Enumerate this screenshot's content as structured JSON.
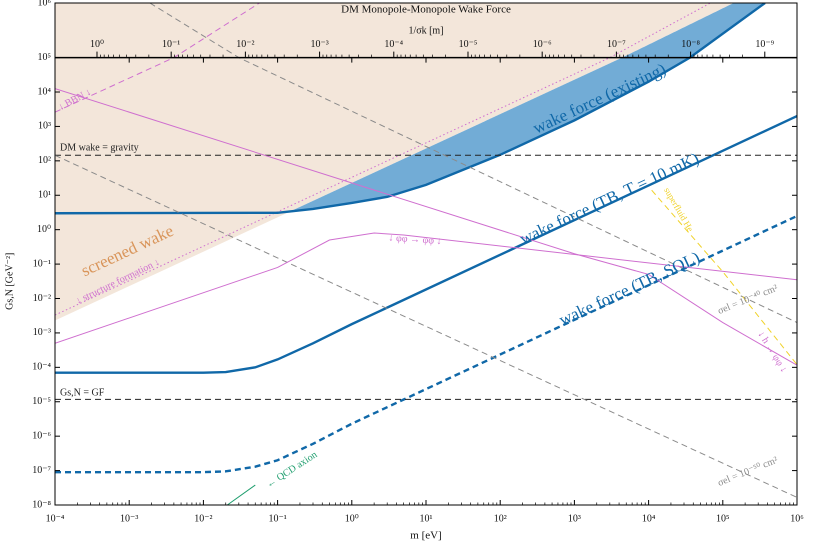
{
  "chart_data": {
    "type": "line",
    "title": "DM Monopole-Monopole Wake Force",
    "x_label": "m [eV]",
    "y_label": "Gs,N [GeV⁻²]",
    "x2_label": "1/σk [m]",
    "xscale": "log",
    "yscale": "log",
    "xlim": [
      0.0001,
      1000000.0
    ],
    "ylim": [
      1e-08,
      1000000.0
    ],
    "top_panel_ylim": [
      100000.0,
      1000000.0
    ],
    "x2lim": [
      3.68,
      3.68e-10
    ],
    "xticks": [
      {
        "value": 0.0001,
        "label": "10⁻⁴"
      },
      {
        "value": 0.001,
        "label": "10⁻³"
      },
      {
        "value": 0.01,
        "label": "10⁻²"
      },
      {
        "value": 0.1,
        "label": "10⁻¹"
      },
      {
        "value": 1,
        "label": "10⁰"
      },
      {
        "value": 10,
        "label": "10¹"
      },
      {
        "value": 100,
        "label": "10²"
      },
      {
        "value": 1000,
        "label": "10³"
      },
      {
        "value": 10000.0,
        "label": "10⁴"
      },
      {
        "value": 100000.0,
        "label": "10⁵"
      },
      {
        "value": 1000000.0,
        "label": "10⁶"
      }
    ],
    "yticks": [
      {
        "value": 1e-08,
        "label": "10⁻⁸"
      },
      {
        "value": 1e-07,
        "label": "10⁻⁷"
      },
      {
        "value": 1e-06,
        "label": "10⁻⁶"
      },
      {
        "value": 1e-05,
        "label": "10⁻⁵"
      },
      {
        "value": 0.0001,
        "label": "10⁻⁴"
      },
      {
        "value": 0.001,
        "label": "10⁻³"
      },
      {
        "value": 0.01,
        "label": "10⁻²"
      },
      {
        "value": 0.1,
        "label": "10⁻¹"
      },
      {
        "value": 1,
        "label": "10⁰"
      },
      {
        "value": 10,
        "label": "10¹"
      },
      {
        "value": 100,
        "label": "10²"
      },
      {
        "value": 1000,
        "label": "10³"
      },
      {
        "value": 10000.0,
        "label": "10⁴"
      },
      {
        "value": 100000.0,
        "label": "10⁵"
      },
      {
        "value": 1000000.0,
        "label": "10⁶"
      }
    ],
    "x2ticks": [
      {
        "value": 1,
        "label": "10⁰"
      },
      {
        "value": 0.1,
        "label": "10⁻¹"
      },
      {
        "value": 0.01,
        "label": "10⁻²"
      },
      {
        "value": 0.001,
        "label": "10⁻³"
      },
      {
        "value": 0.0001,
        "label": "10⁻⁴"
      },
      {
        "value": 1e-05,
        "label": "10⁻⁵"
      },
      {
        "value": 1e-06,
        "label": "10⁻⁶"
      },
      {
        "value": 1e-07,
        "label": "10⁻⁷"
      },
      {
        "value": 1e-08,
        "label": "10⁻⁸"
      },
      {
        "value": 1e-09,
        "label": "10⁻⁹"
      }
    ],
    "series": [
      {
        "name": "screened wake",
        "color": "#f3e6da",
        "label_color": "#d9955a",
        "style": "none",
        "fill": "above",
        "x": [
          0.0001,
          4400,
          140000
        ],
        "values": [
          0.0023,
          100000.0,
          1000000.0
        ]
      },
      {
        "name": "↓ structure formation ↓",
        "color": "#cf6fcf",
        "style": "dotted",
        "x": [
          0.0001,
          3000,
          68000
        ],
        "values": [
          0.0033,
          100000.0,
          1000000.0
        ]
      },
      {
        "name": "↓ BBN ↓",
        "color": "#cf6fcf",
        "style": "dashed",
        "x": [
          0.0001,
          0.004,
          0.057
        ],
        "values": [
          2600,
          100000.0,
          1000000.0
        ]
      },
      {
        "name": "wake force (existing)",
        "color": "#1068a8",
        "fill_color": "#72acd6",
        "fill_below": 0,
        "style": "solid",
        "weight": "thick",
        "x": [
          0.0001,
          0.1,
          0.3,
          1,
          3,
          10,
          100,
          1000,
          10000.0,
          36000,
          370000
        ],
        "values": [
          3,
          3.1,
          4,
          6,
          9,
          20,
          150,
          1500,
          20000,
          100000.0,
          1000000.0
        ]
      },
      {
        "name": "wake force (TB, T = 10 mK)",
        "color": "#1068a8",
        "style": "solid",
        "weight": "thick",
        "x": [
          0.0001,
          0.01,
          0.02,
          0.05,
          0.1,
          0.3,
          1,
          1000000.0
        ],
        "values": [
          7e-05,
          7e-05,
          7.3e-05,
          0.0001,
          0.00017,
          0.0005,
          0.0018,
          2000
        ]
      },
      {
        "name": "wake force (TB, SQL)",
        "color": "#1068a8",
        "style": "dashed",
        "weight": "thick",
        "x": [
          0.0001,
          0.01,
          0.02,
          0.05,
          0.1,
          0.3,
          1,
          1000000.0
        ],
        "values": [
          9e-08,
          9e-08,
          9.5e-08,
          1.3e-07,
          2e-07,
          6e-07,
          2.3e-06,
          2.5
        ]
      },
      {
        "name": "DM wake = gravity",
        "color": "#222222",
        "style": "dashed",
        "x": [
          0.0001,
          1000000.0
        ],
        "values": [
          145,
          145
        ]
      },
      {
        "name": "Gs,N = GF",
        "color": "#222222",
        "style": "dashed",
        "x": [
          0.0001,
          1000000.0
        ],
        "values": [
          1.17e-05,
          1.17e-05
        ]
      },
      {
        "name": "σel = 10⁻⁴⁰ cm²",
        "color": "#8a8a8a",
        "style": "dashed",
        "x": [
          0.0019,
          0.03,
          1000000.0
        ],
        "values": [
          1000000.0,
          100000.0,
          0.002
        ]
      },
      {
        "name": "σel = 10⁻⁵⁰ cm²",
        "color": "#8a8a8a",
        "style": "dashed",
        "x": [
          0.0001,
          1000000.0
        ],
        "values": [
          145,
          1.66e-08
        ]
      },
      {
        "name": "↓ φφ → φφ ↓",
        "color": "#cf6fcf",
        "style": "solid",
        "x": [
          0.0001,
          0.1,
          0.5,
          2,
          5,
          1000000.0
        ],
        "values": [
          0.0005,
          0.08,
          0.5,
          0.8,
          0.7,
          0.035
        ]
      },
      {
        "name": "↓ h → φφ ↓",
        "color": "#cf6fcf",
        "style": "solid",
        "x": [
          0.0001,
          1000,
          10000.0,
          100000.0,
          1000000.0
        ],
        "values": [
          12600,
          0.2,
          0.05,
          0.002,
          0.000115
        ]
      },
      {
        "name": "superfluid He",
        "color": "#f0d22a",
        "style": "dashed",
        "x": [
          11000,
          100000,
          1000000.0
        ],
        "values": [
          14,
          0.06,
          0.00012
        ]
      },
      {
        "name": "← QCD axion",
        "color": "#1f9e6e",
        "style": "solid",
        "x": [
          0.021,
          0.05
        ],
        "values": [
          1e-08,
          3.8e-08
        ]
      }
    ]
  }
}
